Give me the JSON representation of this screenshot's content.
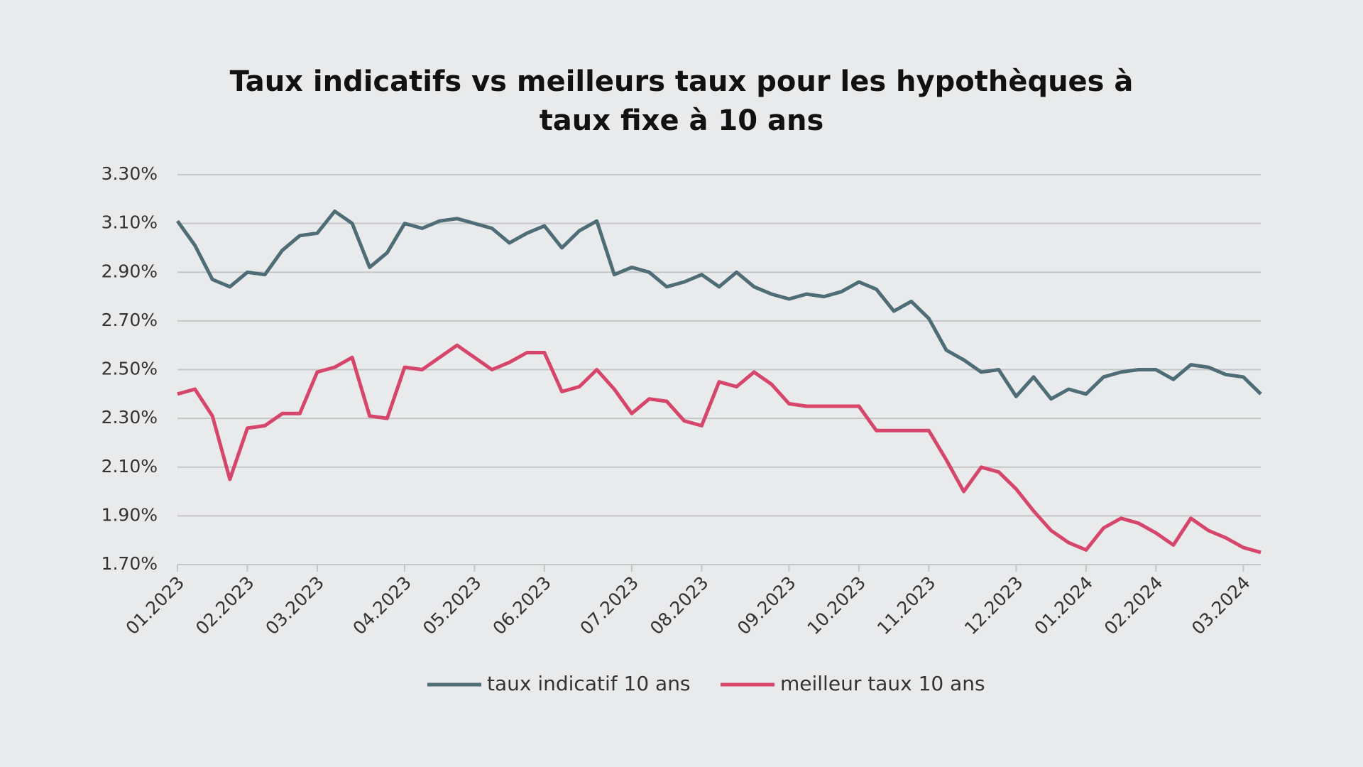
{
  "chart_data": {
    "type": "line",
    "title": "Taux indicatifs vs meilleurs taux pour les hypothèques à taux fixe à 10 ans",
    "categories": [
      "01.2023",
      null,
      null,
      null,
      "02.2023",
      null,
      null,
      null,
      "03.2023",
      null,
      null,
      null,
      null,
      "04.2023",
      null,
      null,
      null,
      "05.2023",
      null,
      null,
      null,
      "06.2023",
      null,
      null,
      null,
      null,
      "07.2023",
      null,
      null,
      null,
      "08.2023",
      null,
      null,
      null,
      null,
      "09.2023",
      null,
      null,
      null,
      "10.2023",
      null,
      null,
      null,
      "11.2023",
      null,
      null,
      null,
      null,
      "12.2023",
      null,
      null,
      null,
      "01.2024",
      null,
      null,
      null,
      "02.2024",
      null,
      null,
      null,
      null,
      "03.2024",
      null
    ],
    "series": [
      {
        "name": "taux indicatif 10 ans",
        "color": "#4f6d76",
        "values": [
          3.11,
          3.01,
          2.87,
          2.84,
          2.9,
          2.89,
          2.99,
          3.05,
          3.06,
          3.15,
          3.1,
          2.92,
          2.98,
          3.1,
          3.08,
          3.11,
          3.12,
          3.1,
          3.08,
          3.02,
          3.06,
          3.09,
          3.0,
          3.07,
          3.11,
          2.89,
          2.92,
          2.9,
          2.84,
          2.86,
          2.89,
          2.84,
          2.9,
          2.84,
          2.81,
          2.79,
          2.81,
          2.8,
          2.82,
          2.86,
          2.83,
          2.74,
          2.78,
          2.71,
          2.58,
          2.54,
          2.49,
          2.5,
          2.39,
          2.47,
          2.38,
          2.42,
          2.4,
          2.47,
          2.49,
          2.5,
          2.5,
          2.46,
          2.52,
          2.51,
          2.48,
          2.47,
          2.4
        ]
      },
      {
        "name": "meilleur taux 10 ans",
        "color": "#d6456a",
        "values": [
          2.4,
          2.42,
          2.31,
          2.05,
          2.26,
          2.27,
          2.32,
          2.32,
          2.49,
          2.51,
          2.55,
          2.31,
          2.3,
          2.51,
          2.5,
          2.55,
          2.6,
          2.55,
          2.5,
          2.53,
          2.57,
          2.57,
          2.41,
          2.43,
          2.5,
          2.42,
          2.32,
          2.38,
          2.37,
          2.29,
          2.27,
          2.45,
          2.43,
          2.49,
          2.44,
          2.36,
          2.35,
          2.35,
          2.35,
          2.35,
          2.25,
          2.25,
          2.25,
          2.25,
          2.13,
          2.0,
          2.1,
          2.08,
          2.01,
          1.92,
          1.84,
          1.79,
          1.76,
          1.85,
          1.89,
          1.87,
          1.83,
          1.78,
          1.89,
          1.84,
          1.81,
          1.77,
          1.75
        ]
      }
    ],
    "ylim": [
      1.7,
      3.3
    ],
    "yticks": [
      {
        "value": 1.7,
        "label": "1.70%"
      },
      {
        "value": 1.9,
        "label": "1.90%"
      },
      {
        "value": 2.1,
        "label": "2.10%"
      },
      {
        "value": 2.3,
        "label": "2.30%"
      },
      {
        "value": 2.5,
        "label": "2.50%"
      },
      {
        "value": 2.7,
        "label": "2.70%"
      },
      {
        "value": 2.9,
        "label": "2.90%"
      },
      {
        "value": 3.1,
        "label": "3.10%"
      },
      {
        "value": 3.3,
        "label": "3.30%"
      }
    ],
    "grid": true,
    "legend": "bottom"
  }
}
